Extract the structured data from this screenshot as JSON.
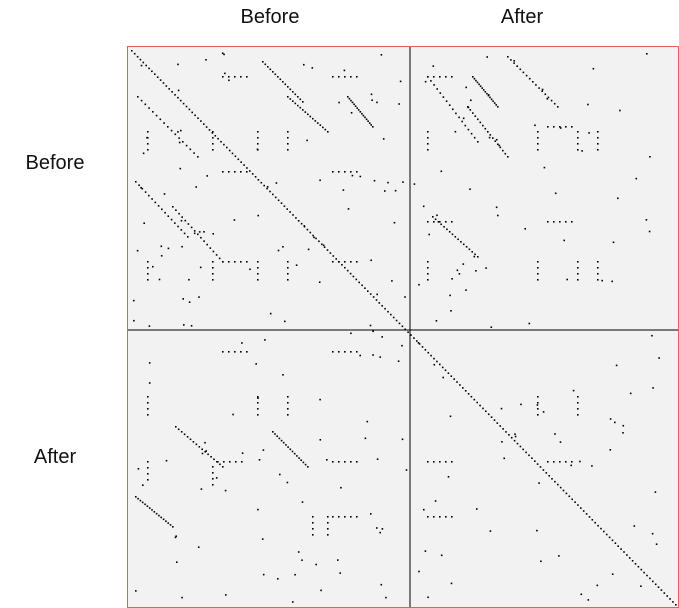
{
  "columns": [
    "Before",
    "After"
  ],
  "rows": [
    "Before",
    "After"
  ],
  "colors": {
    "panel_background": "#f2f2f2",
    "frame": "#e06060",
    "divider": "#000000",
    "point": "#000000"
  }
}
